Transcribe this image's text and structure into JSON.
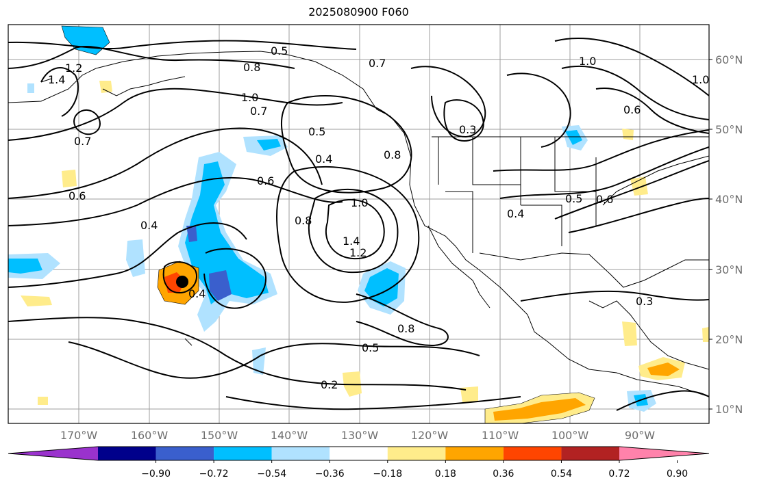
{
  "title": "2025080900 F060",
  "lat_labels": [
    "60°N",
    "50°N",
    "40°N",
    "30°N",
    "20°N",
    "10°N"
  ],
  "lon_labels": [
    "170°W",
    "160°W",
    "150°W",
    "140°W",
    "130°W",
    "120°W",
    "110°W",
    "100°W",
    "90°W"
  ],
  "colorbar": {
    "ticks": [
      "−0.90",
      "−0.72",
      "−0.54",
      "−0.36",
      "−0.18",
      "0.18",
      "0.36",
      "0.54",
      "0.72",
      "0.90"
    ],
    "colors": [
      "#9a32cd",
      "#00008b",
      "#3a5fcd",
      "#00bfff",
      "#b0e2ff",
      "#ffffff",
      "#ffec8b",
      "#ffa500",
      "#ff4500",
      "#b22222",
      "#ff82ab"
    ]
  },
  "contour_labels": [
    "0.5",
    "0.8",
    "1.0",
    "1.2",
    "1.4",
    "0.7",
    "0.6",
    "0.4",
    "0.3",
    "0.2"
  ],
  "legend_colors": {
    "land": "#000000",
    "grid": "#9e9e9e"
  }
}
